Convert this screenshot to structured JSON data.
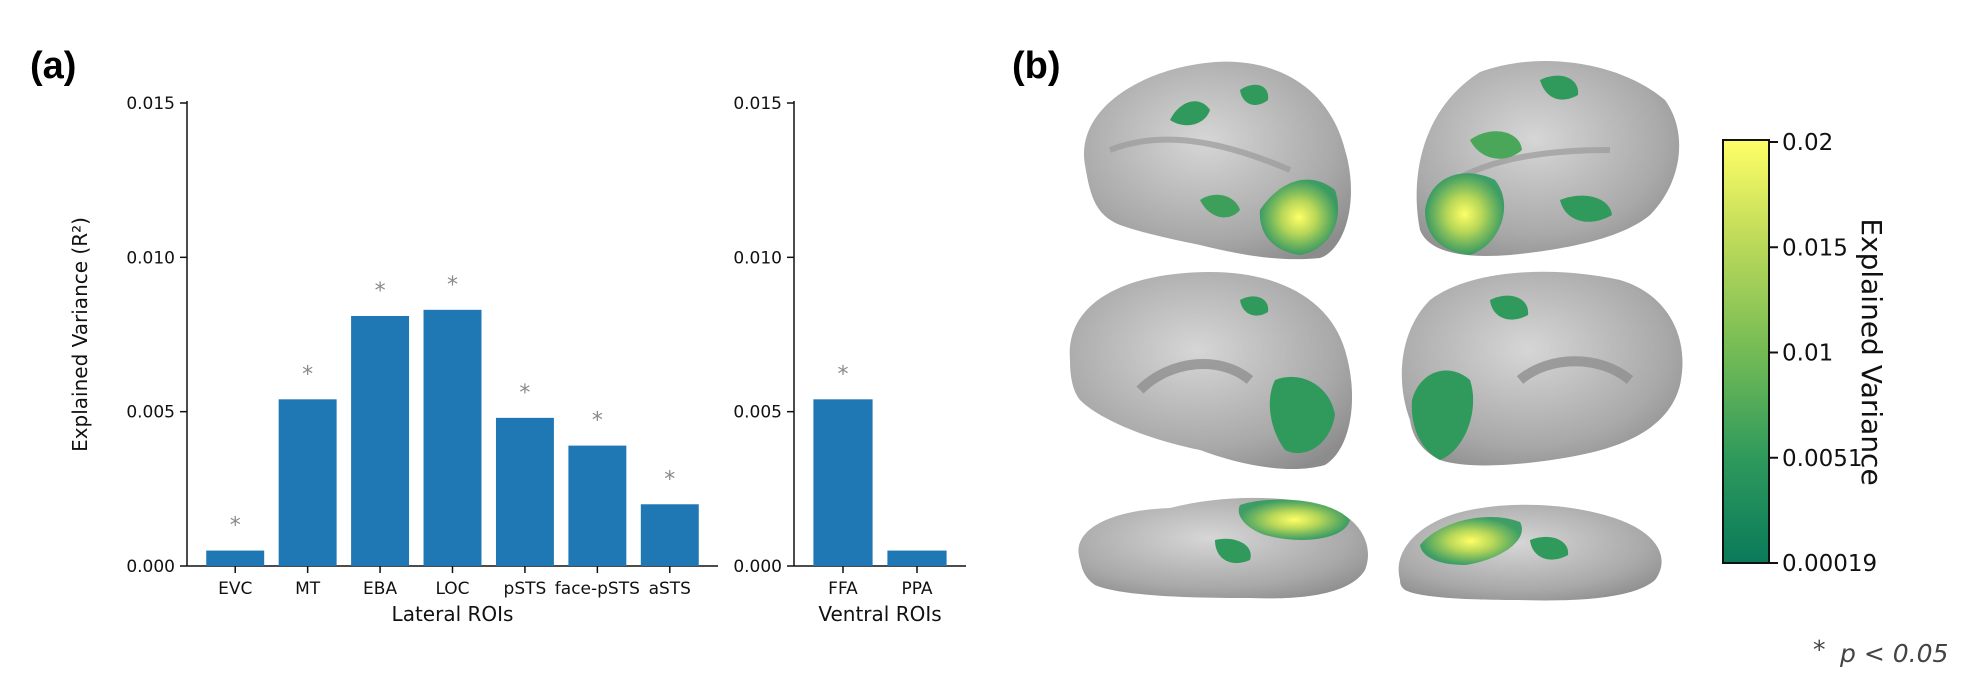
{
  "panels": {
    "a_label": "(a)",
    "b_label": "(b)"
  },
  "chart_data": [
    {
      "type": "bar",
      "categories": [
        "EVC",
        "MT",
        "EBA",
        "LOC",
        "pSTS",
        "face-pSTS",
        "aSTS"
      ],
      "values": [
        0.0005,
        0.0054,
        0.0081,
        0.0083,
        0.0048,
        0.0039,
        0.002
      ],
      "significant": [
        true,
        true,
        true,
        true,
        true,
        true,
        true
      ],
      "xlabel": "Lateral ROIs",
      "ylabel": "Explained Variance (R²)",
      "ylim": [
        0,
        0.015
      ],
      "yticks": [
        "0.000",
        "0.005",
        "0.010",
        "0.015"
      ],
      "bar_color": "#1f77b4"
    },
    {
      "type": "bar",
      "categories": [
        "FFA",
        "PPA"
      ],
      "values": [
        0.0054,
        0.0005
      ],
      "significant": [
        true,
        false
      ],
      "xlabel": "Ventral ROIs",
      "ylim": [
        0,
        0.015
      ],
      "yticks": [
        "0.000",
        "0.005",
        "0.010",
        "0.015"
      ],
      "bar_color": "#1f77b4"
    }
  ],
  "brain_maps": {
    "views": [
      "lateral-left",
      "lateral-right",
      "medial-left",
      "medial-right",
      "ventral-left",
      "ventral-right"
    ],
    "colormap": [
      "#0a7a5a",
      "#2f9a5c",
      "#74bb55",
      "#c2dc5a",
      "#ffff66"
    ]
  },
  "colorbar": {
    "title": "Explained Variance",
    "ticks": [
      "0.02",
      "0.015",
      "0.01",
      "0.0051",
      "0.00019"
    ]
  },
  "footnote": {
    "star": "*",
    "text": "p < 0.05"
  }
}
